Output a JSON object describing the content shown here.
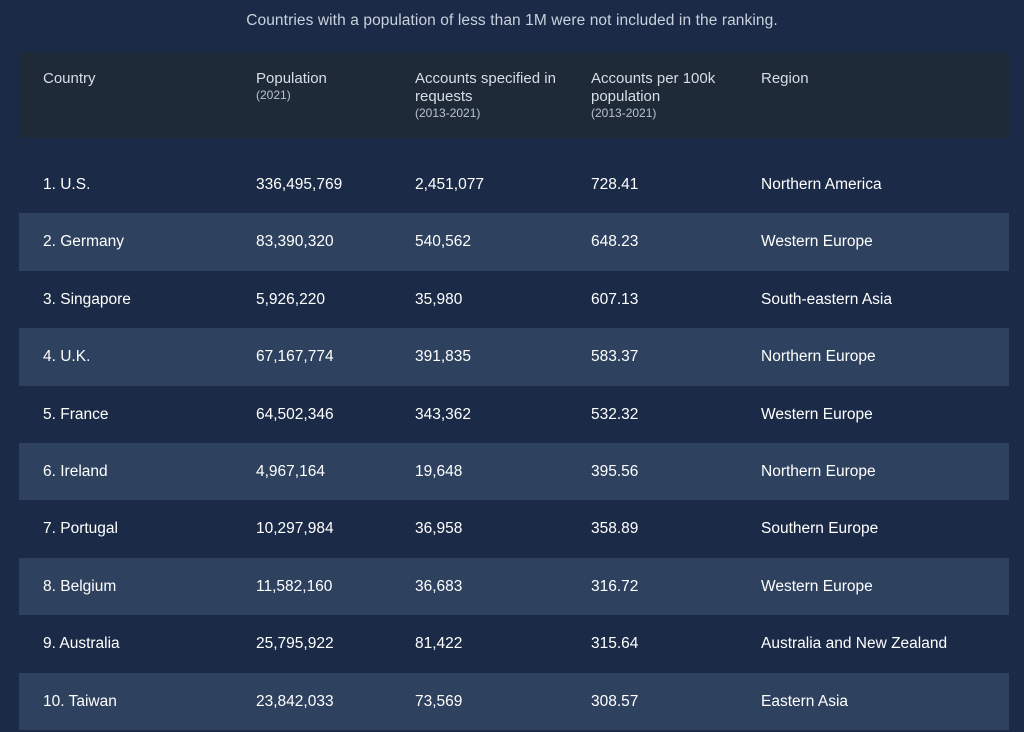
{
  "note": "Countries with a population of less than 1M were not included in the ranking.",
  "header": {
    "country": "Country",
    "population": "Population",
    "population_sub": "(2021)",
    "accounts": "Accounts specified in requests",
    "accounts_sub": "(2013-2021)",
    "per100k": "Accounts per 100k population",
    "per100k_sub": "(2013-2021)",
    "region": "Region"
  },
  "rows": [
    {
      "country": "1. U.S.",
      "population": "336,495,769",
      "accounts": "2,451,077",
      "per100k": "728.41",
      "region": "Northern America"
    },
    {
      "country": "2. Germany",
      "population": "83,390,320",
      "accounts": "540,562",
      "per100k": "648.23",
      "region": "Western Europe"
    },
    {
      "country": "3. Singapore",
      "population": "5,926,220",
      "accounts": "35,980",
      "per100k": "607.13",
      "region": "South-eastern Asia"
    },
    {
      "country": "4. U.K.",
      "population": "67,167,774",
      "accounts": "391,835",
      "per100k": "583.37",
      "region": "Northern Europe"
    },
    {
      "country": "5. France",
      "population": "64,502,346",
      "accounts": "343,362",
      "per100k": "532.32",
      "region": "Western Europe"
    },
    {
      "country": "6. Ireland",
      "population": "4,967,164",
      "accounts": "19,648",
      "per100k": "395.56",
      "region": "Northern Europe"
    },
    {
      "country": "7. Portugal",
      "population": "10,297,984",
      "accounts": "36,958",
      "per100k": "358.89",
      "region": "Southern Europe"
    },
    {
      "country": "8. Belgium",
      "population": "11,582,160",
      "accounts": "36,683",
      "per100k": "316.72",
      "region": "Western Europe"
    },
    {
      "country": "9. Australia",
      "population": "25,795,922",
      "accounts": "81,422",
      "per100k": "315.64",
      "region": "Australia and New Zealand"
    },
    {
      "country": "10. Taiwan",
      "population": "23,842,033",
      "accounts": "73,569",
      "per100k": "308.57",
      "region": "Eastern Asia"
    }
  ]
}
